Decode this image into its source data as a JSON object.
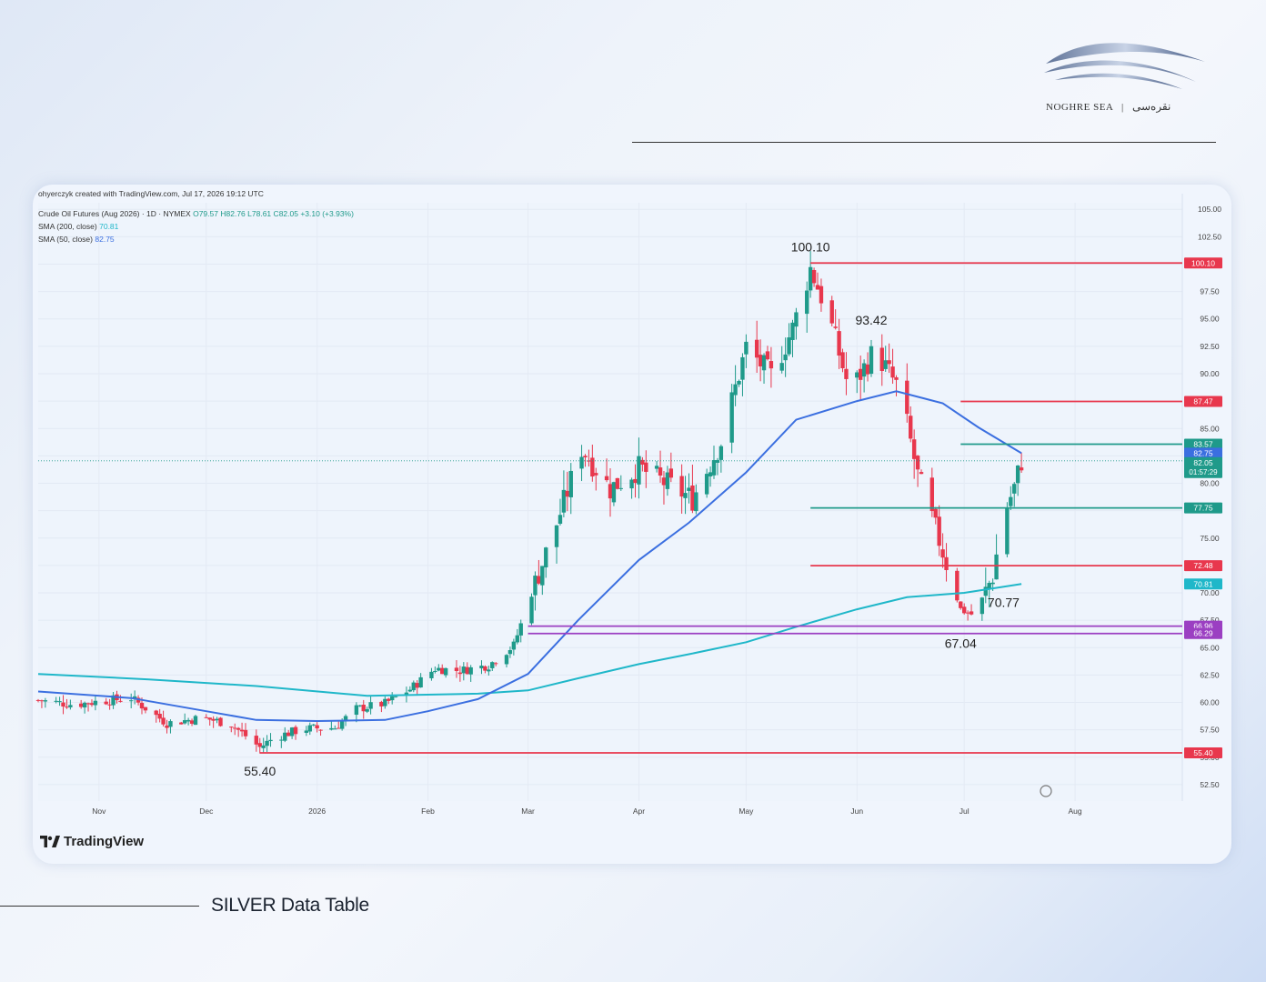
{
  "brand": {
    "name_en": "NOGHRE SEA",
    "name_fa": "نقره‌سی",
    "separator": "|"
  },
  "section_title": "SILVER Data Table",
  "chart_data": {
    "type": "candlestick",
    "credit": "ohyerczyk created with TradingView.com, Jul 17, 2026 19:12 UTC",
    "instrument": "Crude Oil Futures (Aug 2026) · 1D · NYMEX",
    "ohlc": {
      "O": "79.57",
      "H": "82.76",
      "L": "78.61",
      "C": "82.05",
      "change": "+3.10 (+3.93%)"
    },
    "indicators": [
      {
        "label": "SMA (200, close)",
        "value": "70.81",
        "color": "#1fb7c9"
      },
      {
        "label": "SMA (50, close)",
        "value": "82.75",
        "color": "#3b6fe0"
      }
    ],
    "ylim": [
      51,
      105.6
    ],
    "y_ticks": [
      "105.00",
      "102.50",
      "100.00",
      "97.50",
      "95.00",
      "92.50",
      "90.00",
      "87.50",
      "85.00",
      "82.50",
      "80.00",
      "77.50",
      "75.00",
      "72.50",
      "70.00",
      "67.50",
      "65.00",
      "62.50",
      "60.00",
      "57.50",
      "55.00",
      "52.50"
    ],
    "x_labels": [
      {
        "label": "Nov",
        "date": "2025-11-01"
      },
      {
        "label": "Dec",
        "date": "2025-12-01"
      },
      {
        "label": "2026",
        "date": "2026-01-01"
      },
      {
        "label": "Feb",
        "date": "2026-02-01"
      },
      {
        "label": "Mar",
        "date": "2026-03-01"
      },
      {
        "label": "Apr",
        "date": "2026-04-01"
      },
      {
        "label": "May",
        "date": "2026-05-01"
      },
      {
        "label": "Jun",
        "date": "2026-06-01"
      },
      {
        "label": "Jul",
        "date": "2026-07-01"
      },
      {
        "label": "Aug",
        "date": "2026-08-01"
      }
    ],
    "price_path": [
      {
        "date": "2025-10-15",
        "close": 60.2
      },
      {
        "date": "2025-10-25",
        "close": 59.8
      },
      {
        "date": "2025-11-01",
        "close": 60.1
      },
      {
        "date": "2025-11-10",
        "close": 60.4
      },
      {
        "date": "2025-11-20",
        "close": 58.1
      },
      {
        "date": "2025-11-30",
        "close": 58.6
      },
      {
        "date": "2025-12-08",
        "close": 58.0
      },
      {
        "date": "2025-12-16",
        "close": 55.9
      },
      {
        "date": "2025-12-20",
        "close": 56.8
      },
      {
        "date": "2025-12-28",
        "close": 57.6
      },
      {
        "date": "2026-01-06",
        "close": 57.7
      },
      {
        "date": "2026-01-12",
        "close": 59.4
      },
      {
        "date": "2026-01-20",
        "close": 59.9
      },
      {
        "date": "2026-01-27",
        "close": 61.2
      },
      {
        "date": "2026-02-03",
        "close": 63.1
      },
      {
        "date": "2026-02-10",
        "close": 62.9
      },
      {
        "date": "2026-02-18",
        "close": 63.4
      },
      {
        "date": "2026-02-25",
        "close": 65.2
      },
      {
        "date": "2026-03-02",
        "close": 70.0
      },
      {
        "date": "2026-03-09",
        "close": 76.3
      },
      {
        "date": "2026-03-16",
        "close": 83.2
      },
      {
        "date": "2026-03-24",
        "close": 79.5
      },
      {
        "date": "2026-04-01",
        "close": 81.4
      },
      {
        "date": "2026-04-08",
        "close": 80.1
      },
      {
        "date": "2026-04-16",
        "close": 78.6
      },
      {
        "date": "2026-04-24",
        "close": 83.8
      },
      {
        "date": "2026-05-01",
        "close": 92.4
      },
      {
        "date": "2026-05-08",
        "close": 89.8
      },
      {
        "date": "2026-05-14",
        "close": 94.1
      },
      {
        "date": "2026-05-19",
        "close": 99.6
      },
      {
        "date": "2026-05-24",
        "close": 95.4
      },
      {
        "date": "2026-05-30",
        "close": 88.3
      },
      {
        "date": "2026-06-06",
        "close": 92.2
      },
      {
        "date": "2026-06-13",
        "close": 88.4
      },
      {
        "date": "2026-06-18",
        "close": 80.7
      },
      {
        "date": "2026-06-24",
        "close": 74.8
      },
      {
        "date": "2026-06-30",
        "close": 68.5
      },
      {
        "date": "2026-07-04",
        "close": 67.9
      },
      {
        "date": "2026-07-09",
        "close": 71.6
      },
      {
        "date": "2026-07-12",
        "close": 77.2
      },
      {
        "date": "2026-07-15",
        "close": 79.6
      },
      {
        "date": "2026-07-17",
        "close": 82.05
      }
    ],
    "sma200": [
      {
        "date": "2025-10-15",
        "value": 62.6
      },
      {
        "date": "2025-11-15",
        "value": 62.1
      },
      {
        "date": "2025-12-15",
        "value": 61.5
      },
      {
        "date": "2026-01-15",
        "value": 60.6
      },
      {
        "date": "2026-02-15",
        "value": 60.8
      },
      {
        "date": "2026-03-01",
        "value": 61.1
      },
      {
        "date": "2026-03-15",
        "value": 62.2
      },
      {
        "date": "2026-04-01",
        "value": 63.5
      },
      {
        "date": "2026-04-15",
        "value": 64.4
      },
      {
        "date": "2026-05-01",
        "value": 65.5
      },
      {
        "date": "2026-05-15",
        "value": 66.9
      },
      {
        "date": "2026-06-01",
        "value": 68.5
      },
      {
        "date": "2026-06-15",
        "value": 69.6
      },
      {
        "date": "2026-07-01",
        "value": 70.0
      },
      {
        "date": "2026-07-17",
        "value": 70.81
      }
    ],
    "sma50": [
      {
        "date": "2025-10-15",
        "value": 61.0
      },
      {
        "date": "2025-11-10",
        "value": 60.4
      },
      {
        "date": "2025-12-01",
        "value": 59.2
      },
      {
        "date": "2025-12-15",
        "value": 58.4
      },
      {
        "date": "2026-01-01",
        "value": 58.3
      },
      {
        "date": "2026-01-20",
        "value": 58.4
      },
      {
        "date": "2026-02-01",
        "value": 59.2
      },
      {
        "date": "2026-02-15",
        "value": 60.3
      },
      {
        "date": "2026-03-01",
        "value": 62.6
      },
      {
        "date": "2026-03-15",
        "value": 67.5
      },
      {
        "date": "2026-04-01",
        "value": 73.0
      },
      {
        "date": "2026-04-15",
        "value": 76.4
      },
      {
        "date": "2026-05-01",
        "value": 81.0
      },
      {
        "date": "2026-05-15",
        "value": 85.8
      },
      {
        "date": "2026-06-01",
        "value": 87.5
      },
      {
        "date": "2026-06-12",
        "value": 88.4
      },
      {
        "date": "2026-06-25",
        "value": 87.3
      },
      {
        "date": "2026-07-05",
        "value": 85.1
      },
      {
        "date": "2026-07-17",
        "value": 82.75
      }
    ],
    "horizontal_levels": [
      {
        "value": 100.1,
        "label": "100.10",
        "color": "#e8374d",
        "from": "2026-05-19"
      },
      {
        "value": 87.47,
        "label": "87.47",
        "color": "#e8374d",
        "from": "2026-06-30"
      },
      {
        "value": 83.57,
        "label": "83.57",
        "color": "#1f9a8a",
        "from": "2026-06-30"
      },
      {
        "value": 77.75,
        "label": "77.75",
        "color": "#1f9a8a",
        "from": "2026-05-19"
      },
      {
        "value": 72.48,
        "label": "72.48",
        "color": "#e8374d",
        "from": "2026-05-19"
      },
      {
        "value": 66.96,
        "label": "66.96",
        "color": "#9b3fc2",
        "from": "2026-03-01"
      },
      {
        "value": 66.29,
        "label": "66.29",
        "color": "#9b3fc2",
        "from": "2026-03-01"
      },
      {
        "value": 55.4,
        "label": "55.40",
        "color": "#e8374d",
        "from": "2025-12-16"
      }
    ],
    "price_tags": [
      {
        "value": 82.75,
        "label": "82.75",
        "color": "#3b6fe0"
      },
      {
        "value": 70.81,
        "label": "70.81",
        "color": "#1fb7c9"
      }
    ],
    "current_price": {
      "value": 82.05,
      "label": "82.05",
      "countdown": "01:57:29",
      "color": "#1f9a8a"
    },
    "annotations": [
      {
        "date": "2026-05-19",
        "value": 100.1,
        "text": "100.10",
        "position": "above"
      },
      {
        "date": "2026-06-05",
        "value": 93.42,
        "text": "93.42",
        "position": "above"
      },
      {
        "date": "2026-07-12",
        "value": 70.77,
        "text": "70.77",
        "position": "below"
      },
      {
        "date": "2026-06-30",
        "value": 67.04,
        "text": "67.04",
        "position": "below"
      },
      {
        "date": "2025-12-16",
        "value": 55.4,
        "text": "55.40",
        "position": "below"
      }
    ],
    "up_color": "#1f9a8a",
    "down_color": "#e8374d",
    "watermark": "TradingView"
  }
}
